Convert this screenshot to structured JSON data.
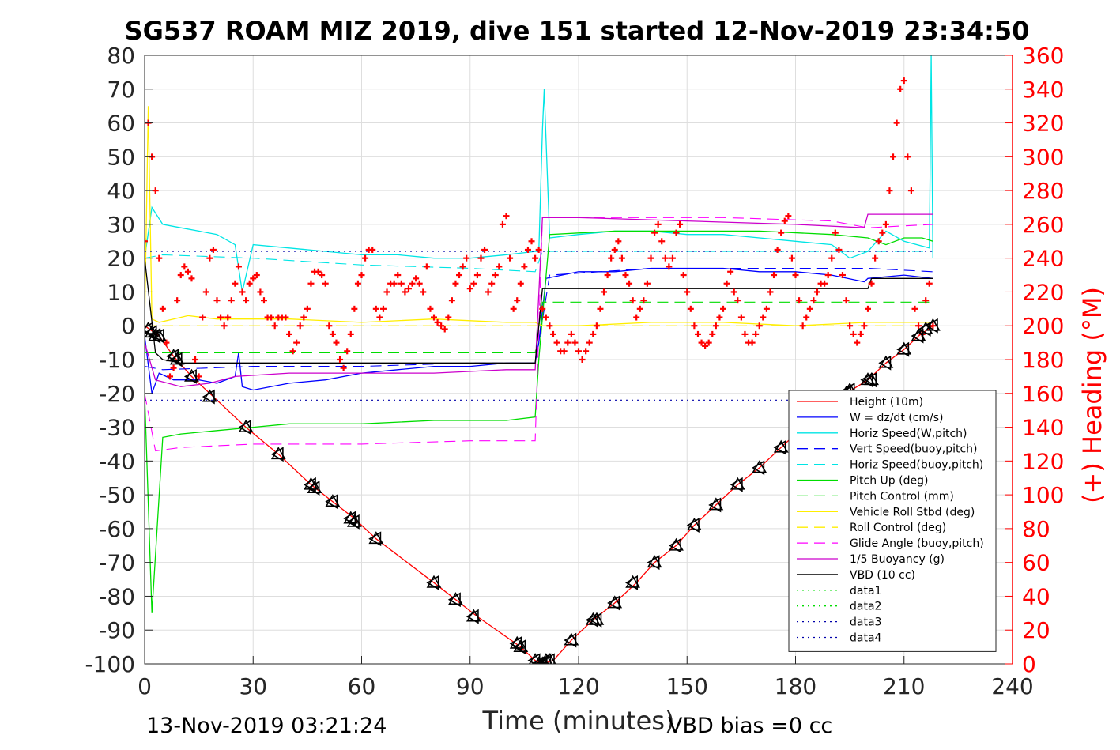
{
  "chart_data": {
    "type": "line",
    "title": "SG537 ROAM MIZ 2019, dive 151 started 12-Nov-2019 23:34:50",
    "xlabel": "Time (minutes)",
    "ylabel_right": "(+) Heading (°M)",
    "footer_left": "13-Nov-2019 03:21:24",
    "footer_right": "VBD bias =0 cc",
    "xlim": [
      0,
      240
    ],
    "ylim": [
      -100,
      80
    ],
    "ylim_right": [
      0,
      360
    ],
    "x_ticks": [
      "0",
      "30",
      "60",
      "90",
      "120",
      "150",
      "180",
      "210",
      "240"
    ],
    "y_ticks": [
      "80",
      "70",
      "60",
      "50",
      "40",
      "30",
      "20",
      "10",
      "0",
      "-10",
      "-20",
      "-30",
      "-40",
      "-50",
      "-60",
      "-70",
      "-80",
      "-90",
      "-100"
    ],
    "y_right_ticks": [
      "360",
      "340",
      "320",
      "300",
      "280",
      "260",
      "240",
      "220",
      "200",
      "180",
      "160",
      "140",
      "120",
      "100",
      "80",
      "60",
      "40",
      "20",
      "0"
    ],
    "grid": true,
    "legend_position": "bottom-right",
    "colors": {
      "heading": "#ff0000",
      "right_axis": "#ff0000"
    },
    "series": [
      {
        "name": "Height (10m)",
        "color": "#ff0000",
        "dash": "solid",
        "x": [
          0,
          4,
          8,
          13,
          18,
          28,
          37,
          46,
          52,
          58,
          64,
          80,
          86,
          92,
          104,
          108,
          110,
          113,
          118,
          124,
          130,
          136,
          141,
          147,
          152,
          158,
          164,
          170,
          176,
          182,
          188,
          194,
          200,
          205,
          210,
          214,
          218
        ],
        "y": [
          0,
          -3,
          -9,
          -15,
          -20,
          -30,
          -38,
          -47,
          -52,
          -57,
          -63,
          -76,
          -81,
          -86,
          -95,
          -99,
          -100,
          -99,
          -93,
          -87,
          -82,
          -76,
          -70,
          -65,
          -59,
          -53,
          -47,
          -42,
          -36,
          -30,
          -25,
          -20,
          -16,
          -11,
          -7,
          -3,
          0
        ]
      },
      {
        "name": "W = dz/dt (cm/s)",
        "color": "#0000ff",
        "dash": "solid",
        "x": [
          0,
          2,
          4,
          8,
          15,
          20,
          25,
          26,
          27,
          30,
          40,
          50,
          60,
          70,
          80,
          90,
          100,
          108,
          109,
          111,
          120,
          130,
          140,
          150,
          160,
          170,
          180,
          190,
          199,
          200,
          210,
          218
        ],
        "y": [
          -3,
          -20,
          -14,
          -16,
          -16,
          -17,
          -15,
          -8,
          -18,
          -19,
          -17,
          -16,
          -14,
          -13,
          -12,
          -12,
          -11,
          -11,
          -5,
          14,
          16,
          16,
          17,
          17,
          17,
          16,
          16,
          15,
          13,
          14,
          15,
          14
        ]
      },
      {
        "name": "Horiz Speed(W,pitch)",
        "color": "#00e5e5",
        "dash": "solid",
        "x": [
          0,
          2,
          5,
          10,
          15,
          20,
          25,
          27,
          30,
          40,
          50,
          60,
          70,
          80,
          90,
          100,
          108,
          109,
          110,
          110.5,
          112,
          120,
          130,
          140,
          150,
          160,
          170,
          180,
          190,
          195,
          200,
          205,
          210,
          217,
          217.5,
          218
        ],
        "y": [
          20,
          35,
          30,
          29,
          28,
          27,
          24,
          10,
          24,
          23,
          22,
          21,
          21,
          20,
          20,
          21,
          22,
          22,
          58,
          70,
          26,
          27,
          28,
          28,
          27,
          27,
          26,
          25,
          24,
          20,
          22,
          28,
          25,
          23,
          80,
          20
        ]
      },
      {
        "name": "Vert Speed(buoy,pitch)",
        "color": "#0000ff",
        "dash": "dashed",
        "x": [
          0,
          5,
          30,
          60,
          90,
          108,
          109,
          112,
          140,
          170,
          200,
          218
        ],
        "y": [
          -12,
          -13,
          -12,
          -12,
          -11,
          -11,
          -5,
          15,
          17,
          17,
          17,
          16
        ]
      },
      {
        "name": "Horiz Speed(buoy,pitch)",
        "color": "#00e5e5",
        "dash": "dashed",
        "x": [
          0,
          5,
          30,
          60,
          90,
          108,
          110,
          140,
          170,
          200,
          218
        ],
        "y": [
          20,
          21,
          20,
          18,
          17,
          16,
          22,
          22,
          22,
          22,
          22
        ]
      },
      {
        "name": "Pitch Up (deg)",
        "color": "#00dd00",
        "dash": "solid",
        "x": [
          0,
          2,
          5,
          10,
          20,
          30,
          40,
          60,
          80,
          100,
          108,
          109,
          112,
          130,
          150,
          170,
          190,
          200,
          205,
          210,
          215,
          218
        ],
        "y": [
          -20,
          -85,
          -33,
          -32,
          -31,
          -30,
          -29,
          -29,
          -28,
          -28,
          -27,
          -10,
          27,
          28,
          28,
          28,
          27,
          26,
          24,
          26,
          26,
          25
        ]
      },
      {
        "name": "Pitch Control (mm)",
        "color": "#00dd00",
        "dash": "dashed",
        "x": [
          0,
          2,
          108,
          110,
          218
        ],
        "y": [
          -8,
          -8,
          -8,
          7,
          7
        ]
      },
      {
        "name": "Vehicle Roll Stbd (deg)",
        "color": "#ffee00",
        "dash": "solid",
        "x": [
          0,
          1,
          2,
          4,
          8,
          12,
          20,
          40,
          60,
          80,
          100,
          108,
          110,
          120,
          140,
          160,
          180,
          200,
          210,
          218
        ],
        "y": [
          0,
          65,
          2,
          1,
          2,
          3,
          2,
          2,
          1,
          2,
          1,
          1,
          0,
          0,
          1,
          1,
          0,
          1,
          1,
          1
        ]
      },
      {
        "name": "Roll Control (deg)",
        "color": "#ffee00",
        "dash": "dashed",
        "x": [
          0,
          218
        ],
        "y": [
          0,
          0
        ]
      },
      {
        "name": "Glide Angle (buoy,pitch)",
        "color": "#ff00ff",
        "dash": "dashed",
        "x": [
          0,
          3,
          10,
          30,
          60,
          90,
          108,
          110,
          130,
          160,
          190,
          200,
          218
        ],
        "y": [
          -20,
          -37,
          -36,
          -35,
          -35,
          -34,
          -34,
          32,
          32,
          32,
          31,
          29,
          30
        ]
      },
      {
        "name": "1/5 Buoyancy (g)",
        "color": "#cc00cc",
        "dash": "solid",
        "x": [
          0,
          3,
          10,
          18,
          25,
          40,
          60,
          80,
          100,
          108,
          110,
          120,
          150,
          180,
          199,
          200,
          218
        ],
        "y": [
          -5,
          -16,
          -18,
          -17,
          -15,
          -14,
          -14,
          -14,
          -13,
          -13,
          32,
          32,
          31,
          30,
          29,
          33,
          33
        ]
      },
      {
        "name": "VBD (10 cc)",
        "color": "#000000",
        "dash": "solid",
        "x": [
          0,
          3,
          5,
          10,
          108,
          110,
          200,
          201,
          218
        ],
        "y": [
          20,
          -8,
          -10,
          -11,
          -11,
          11,
          11,
          14,
          14
        ]
      },
      {
        "name": "data1",
        "color": "#00dd00",
        "dash": "dotted",
        "x": [],
        "y": []
      },
      {
        "name": "data2",
        "color": "#00dd00",
        "dash": "dotted",
        "x": [],
        "y": []
      },
      {
        "name": "data3",
        "color": "#0000aa",
        "dash": "dotted",
        "x": [
          0,
          218
        ],
        "y": [
          22,
          22
        ]
      },
      {
        "name": "data4",
        "color": "#0000aa",
        "dash": "dotted",
        "x": [
          0,
          218
        ],
        "y": [
          -22,
          -22
        ]
      }
    ],
    "heading": {
      "color": "#ff0000",
      "x": [
        0,
        1,
        2,
        3,
        4,
        5,
        6,
        7,
        8,
        9,
        10,
        11,
        12,
        13,
        14,
        15,
        16,
        17,
        18,
        19,
        20,
        21,
        22,
        23,
        24,
        25,
        26,
        27,
        28,
        29,
        30,
        31,
        32,
        33,
        34,
        35,
        36,
        37,
        38,
        39,
        40,
        41,
        42,
        43,
        44,
        45,
        46,
        47,
        48,
        49,
        50,
        51,
        52,
        53,
        54,
        55,
        56,
        57,
        58,
        59,
        60,
        61,
        62,
        63,
        64,
        65,
        66,
        67,
        68,
        69,
        70,
        71,
        72,
        73,
        74,
        75,
        76,
        77,
        78,
        79,
        80,
        81,
        82,
        83,
        84,
        85,
        86,
        87,
        88,
        89,
        90,
        91,
        92,
        93,
        94,
        95,
        96,
        97,
        98,
        99,
        100,
        101,
        102,
        103,
        104,
        105,
        106,
        107,
        108,
        109,
        110,
        111,
        112,
        113,
        114,
        115,
        116,
        117,
        118,
        119,
        120,
        121,
        122,
        123,
        124,
        125,
        126,
        127,
        128,
        129,
        130,
        131,
        132,
        133,
        134,
        135,
        136,
        137,
        138,
        139,
        140,
        141,
        142,
        143,
        144,
        145,
        146,
        147,
        148,
        149,
        150,
        151,
        152,
        153,
        154,
        155,
        156,
        157,
        158,
        159,
        160,
        161,
        162,
        163,
        164,
        165,
        166,
        167,
        168,
        169,
        170,
        171,
        172,
        173,
        174,
        175,
        176,
        177,
        178,
        179,
        180,
        181,
        182,
        183,
        184,
        185,
        186,
        187,
        188,
        189,
        190,
        191,
        192,
        193,
        194,
        195,
        196,
        197,
        198,
        199,
        200,
        201,
        202,
        203,
        204,
        205,
        206,
        207,
        208,
        209,
        210,
        211,
        212,
        213,
        214,
        215,
        216,
        217,
        218
      ],
      "y": [
        250,
        320,
        300,
        280,
        240,
        210,
        190,
        170,
        175,
        215,
        230,
        235,
        232,
        228,
        180,
        170,
        205,
        220,
        240,
        245,
        215,
        205,
        200,
        205,
        215,
        225,
        235,
        220,
        215,
        225,
        228,
        230,
        220,
        215,
        205,
        205,
        200,
        205,
        205,
        205,
        195,
        185,
        190,
        200,
        205,
        210,
        225,
        232,
        232,
        230,
        225,
        200,
        195,
        190,
        180,
        175,
        185,
        195,
        210,
        225,
        230,
        240,
        245,
        245,
        210,
        205,
        210,
        220,
        225,
        225,
        230,
        225,
        220,
        222,
        225,
        228,
        225,
        220,
        235,
        210,
        205,
        202,
        200,
        198,
        205,
        215,
        225,
        230,
        235,
        240,
        222,
        225,
        230,
        240,
        245,
        220,
        225,
        230,
        235,
        260,
        265,
        240,
        210,
        215,
        225,
        235,
        245,
        250,
        240,
        245,
        210,
        205,
        200,
        195,
        190,
        185,
        185,
        190,
        195,
        190,
        185,
        180,
        185,
        190,
        195,
        200,
        210,
        220,
        230,
        240,
        245,
        250,
        240,
        230,
        225,
        215,
        205,
        210,
        215,
        225,
        240,
        255,
        260,
        250,
        240,
        235,
        240,
        255,
        260,
        230,
        220,
        210,
        200,
        195,
        190,
        188,
        190,
        195,
        200,
        205,
        210,
        225,
        232,
        220,
        215,
        205,
        195,
        190,
        190,
        195,
        200,
        205,
        210,
        220,
        230,
        245,
        255,
        262,
        265,
        240,
        230,
        215,
        200,
        205,
        210,
        215,
        220,
        225,
        225,
        230,
        240,
        255,
        245,
        230,
        215,
        200,
        195,
        190,
        195,
        200,
        210,
        225,
        240,
        250,
        255,
        260,
        280,
        300,
        320,
        340,
        345,
        300,
        280,
        210,
        200,
        195,
        215,
        225,
        200
      ]
    },
    "markers": {
      "x": [
        1,
        2,
        3,
        4,
        8,
        9,
        13,
        18,
        28,
        37,
        46,
        47,
        52,
        57,
        58,
        64,
        80,
        86,
        91,
        103,
        104,
        108,
        109,
        110,
        111,
        112,
        118,
        124,
        125,
        130,
        135,
        141,
        147,
        152,
        158,
        164,
        170,
        176,
        194,
        195,
        200,
        201,
        205,
        210,
        214,
        216,
        218
      ],
      "y": [
        -1,
        -2,
        -3,
        -3,
        -9,
        -10,
        -15,
        -21,
        -30,
        -38,
        -47,
        -48,
        -52,
        -57,
        -58,
        -63,
        -76,
        -81,
        -86,
        -94,
        -95,
        -99,
        -100,
        -100,
        -99,
        -99,
        -93,
        -87,
        -87,
        -82,
        -76,
        -70,
        -65,
        -59,
        -53,
        -47,
        -42,
        -36,
        -20,
        -19,
        -16,
        -16,
        -11,
        -7,
        -3,
        -1,
        0
      ]
    }
  }
}
